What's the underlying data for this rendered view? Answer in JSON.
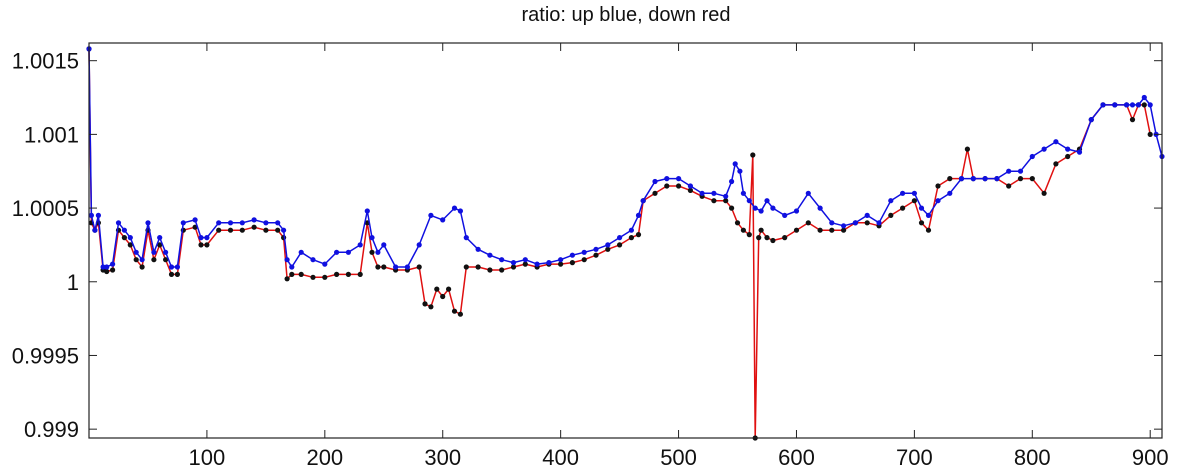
{
  "chart_data": {
    "type": "line",
    "title": "ratio: up blue, down red",
    "xlabel": "",
    "ylabel": "",
    "xlim": [
      0,
      910
    ],
    "ylim": [
      0.99894,
      1.00162
    ],
    "xticks": [
      100,
      200,
      300,
      400,
      500,
      600,
      700,
      800,
      900
    ],
    "yticks": [
      0.999,
      0.9995,
      1,
      1.0005,
      1.001,
      1.0015
    ],
    "ytick_labels": [
      "0.999",
      "0.9995",
      "1",
      "1.0005",
      "1.001",
      "1.0015"
    ],
    "grid": false,
    "legend": "none",
    "series": [
      {
        "color": "#1010e0",
        "marker_color": "#1010e0",
        "x": [
          0,
          2,
          5,
          8,
          12,
          15,
          20,
          25,
          30,
          35,
          40,
          45,
          50,
          55,
          60,
          65,
          70,
          75,
          80,
          90,
          95,
          100,
          110,
          120,
          130,
          140,
          150,
          160,
          165,
          168,
          172,
          180,
          190,
          200,
          210,
          220,
          230,
          236,
          240,
          245,
          250,
          260,
          270,
          280,
          290,
          300,
          310,
          315,
          320,
          330,
          340,
          350,
          360,
          370,
          380,
          390,
          400,
          410,
          420,
          430,
          440,
          450,
          460,
          466,
          470,
          480,
          490,
          500,
          510,
          520,
          530,
          540,
          545,
          548,
          552,
          555,
          560,
          565,
          570,
          575,
          580,
          590,
          600,
          610,
          620,
          630,
          640,
          650,
          660,
          670,
          680,
          690,
          700,
          706,
          712,
          720,
          730,
          740,
          750,
          760,
          770,
          780,
          790,
          800,
          810,
          820,
          830,
          840,
          850,
          860,
          870,
          880,
          885,
          890,
          895,
          900,
          905,
          910
        ],
        "y": [
          1.00158,
          1.00045,
          1.00035,
          1.00045,
          1.0001,
          1.0001,
          1.00012,
          1.0004,
          1.00035,
          1.0003,
          1.0002,
          1.00015,
          1.0004,
          1.0002,
          1.0003,
          1.0002,
          1.0001,
          1.0001,
          1.0004,
          1.00042,
          1.0003,
          1.0003,
          1.0004,
          1.0004,
          1.0004,
          1.00042,
          1.0004,
          1.0004,
          1.00035,
          1.00015,
          1.0001,
          1.0002,
          1.00015,
          1.00012,
          1.0002,
          1.0002,
          1.00025,
          1.00048,
          1.0003,
          1.0002,
          1.00025,
          1.0001,
          1.0001,
          1.00025,
          1.00045,
          1.00042,
          1.0005,
          1.00048,
          1.0003,
          1.00022,
          1.00018,
          1.00015,
          1.00013,
          1.00015,
          1.00012,
          1.00013,
          1.00015,
          1.00018,
          1.0002,
          1.00022,
          1.00025,
          1.0003,
          1.00035,
          1.00045,
          1.00055,
          1.00068,
          1.0007,
          1.0007,
          1.00065,
          1.0006,
          1.0006,
          1.00058,
          1.00068,
          1.0008,
          1.00075,
          1.0006,
          1.00055,
          1.0005,
          1.00048,
          1.00055,
          1.0005,
          1.00045,
          1.00048,
          1.0006,
          1.0005,
          1.0004,
          1.00038,
          1.0004,
          1.00045,
          1.0004,
          1.00055,
          1.0006,
          1.0006,
          1.0005,
          1.00045,
          1.00055,
          1.0006,
          1.0007,
          1.0007,
          1.0007,
          1.0007,
          1.00075,
          1.00075,
          1.00085,
          1.0009,
          1.00095,
          1.0009,
          1.00088,
          1.0011,
          1.0012,
          1.0012,
          1.0012,
          1.0012,
          1.0012,
          1.00125,
          1.0012,
          1.001,
          1.00085
        ]
      },
      {
        "color": "#e01010",
        "marker_color": "#111111",
        "x": [
          0,
          2,
          5,
          8,
          12,
          15,
          20,
          25,
          30,
          35,
          40,
          45,
          50,
          55,
          60,
          65,
          70,
          75,
          80,
          90,
          95,
          100,
          110,
          120,
          130,
          140,
          150,
          160,
          165,
          168,
          172,
          180,
          190,
          200,
          210,
          220,
          230,
          236,
          240,
          245,
          250,
          260,
          270,
          280,
          285,
          290,
          295,
          300,
          305,
          310,
          315,
          320,
          330,
          340,
          350,
          360,
          370,
          380,
          390,
          400,
          410,
          420,
          430,
          440,
          450,
          460,
          466,
          470,
          480,
          490,
          500,
          510,
          520,
          530,
          540,
          545,
          550,
          555,
          560,
          563,
          565,
          568,
          570,
          575,
          580,
          590,
          600,
          610,
          620,
          630,
          640,
          650,
          660,
          670,
          680,
          690,
          700,
          706,
          712,
          720,
          730,
          740,
          745,
          750,
          760,
          770,
          780,
          790,
          800,
          810,
          820,
          830,
          840,
          850,
          860,
          870,
          880,
          885,
          890,
          895,
          900
        ],
        "y": [
          1.00158,
          1.0004,
          1.00035,
          1.0004,
          1.00008,
          1.00007,
          1.00008,
          1.00035,
          1.0003,
          1.00025,
          1.00015,
          1.0001,
          1.00035,
          1.00015,
          1.00025,
          1.00015,
          1.00005,
          1.00005,
          1.00035,
          1.00037,
          1.00025,
          1.00025,
          1.00035,
          1.00035,
          1.00035,
          1.00037,
          1.00035,
          1.00035,
          1.0003,
          1.00002,
          1.00005,
          1.00005,
          1.00003,
          1.00003,
          1.00005,
          1.00005,
          1.00005,
          1.0004,
          1.0002,
          1.0001,
          1.0001,
          1.00008,
          1.00008,
          1.0001,
          0.99985,
          0.99983,
          0.99995,
          0.9999,
          0.99995,
          0.9998,
          0.99978,
          1.0001,
          1.0001,
          1.00008,
          1.00008,
          1.0001,
          1.00012,
          1.0001,
          1.00012,
          1.00012,
          1.00013,
          1.00015,
          1.00018,
          1.00022,
          1.00025,
          1.0003,
          1.00032,
          1.00055,
          1.0006,
          1.00065,
          1.00065,
          1.00062,
          1.00058,
          1.00055,
          1.00055,
          1.0005,
          1.0004,
          1.00035,
          1.00032,
          1.00086,
          0.99894,
          1.0003,
          1.00035,
          1.0003,
          1.00028,
          1.0003,
          1.00035,
          1.0004,
          1.00035,
          1.00035,
          1.00035,
          1.0004,
          1.0004,
          1.00038,
          1.00045,
          1.0005,
          1.00055,
          1.0004,
          1.00035,
          1.00065,
          1.0007,
          1.0007,
          1.0009,
          1.0007,
          1.0007,
          1.0007,
          1.00065,
          1.0007,
          1.0007,
          1.0006,
          1.0008,
          1.00085,
          1.0009,
          1.0011,
          1.0012,
          1.0012,
          1.0012,
          1.0011,
          1.0012,
          1.0012,
          1.001
        ]
      }
    ]
  }
}
